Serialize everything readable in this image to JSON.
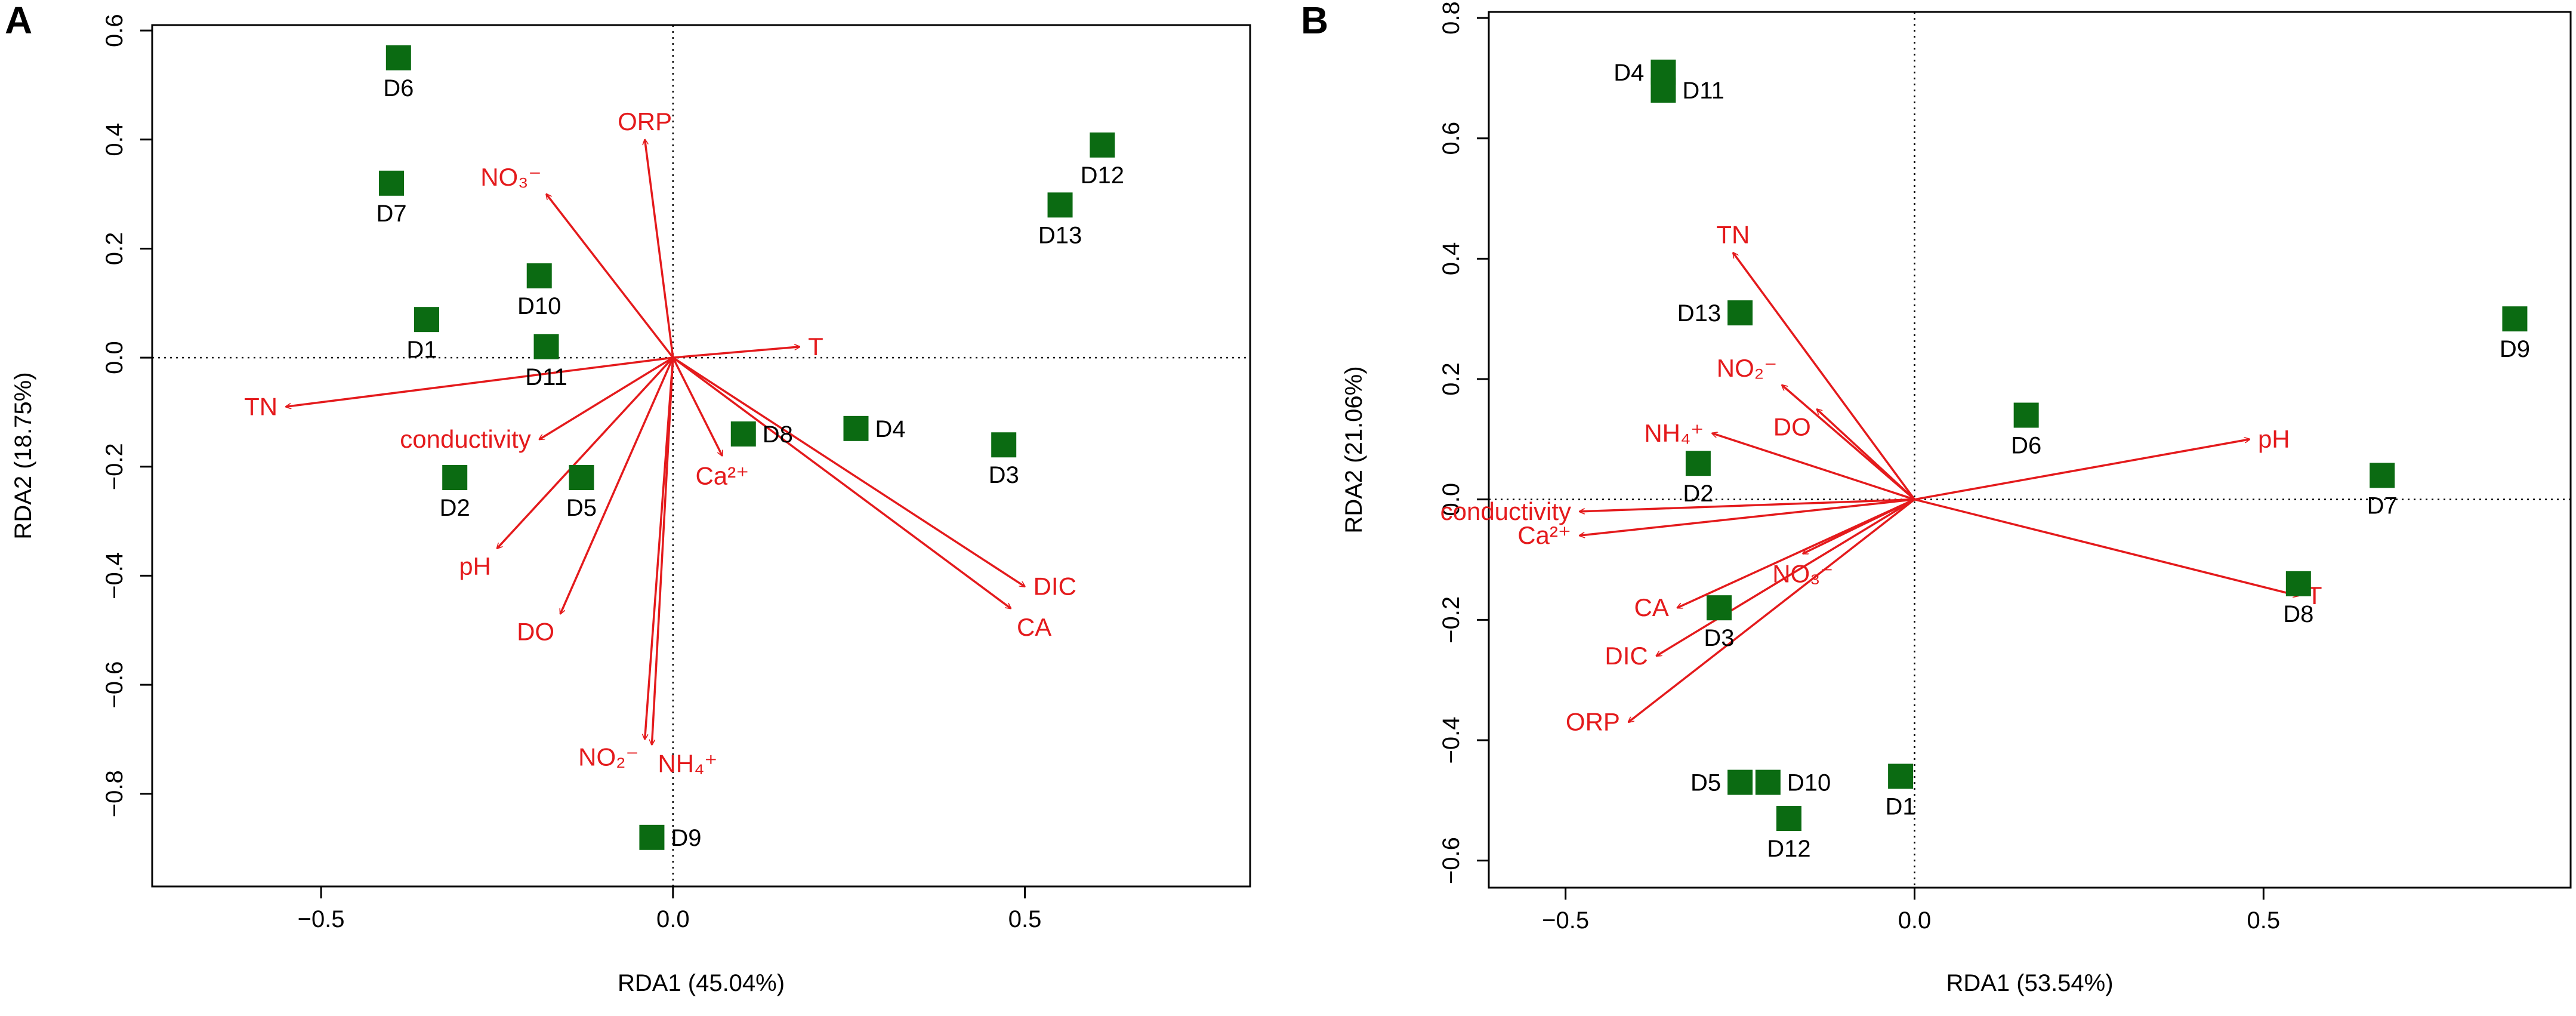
{
  "colors": {
    "arrow": "#e41a1c",
    "site": "#0b6b12",
    "axis": "#000000"
  },
  "chart_data": [
    {
      "type": "scatter",
      "panel": "A",
      "xlabel": "RDA1 (45.04%)",
      "ylabel": "RDA2 (18.75%)",
      "xlim": [
        -0.74,
        0.82
      ],
      "ylim": [
        -0.97,
        0.61
      ],
      "xticks": [
        -0.5,
        0.0,
        0.5
      ],
      "xtick_labels": [
        "−0.5",
        "0.0",
        "0.5"
      ],
      "yticks": [
        -0.8,
        -0.6,
        -0.4,
        -0.2,
        0.0,
        0.2,
        0.4,
        0.6
      ],
      "ytick_labels": [
        "−0.8",
        "−0.6",
        "−0.4",
        "−0.2",
        "0.0",
        "0.2",
        "0.4",
        "0.6"
      ],
      "arrows": [
        {
          "label": "ORP",
          "x": -0.04,
          "y": 0.4,
          "lpos": "top"
        },
        {
          "label": "NO₃⁻",
          "x": -0.18,
          "y": 0.3,
          "lpos": "top-left"
        },
        {
          "label": "T",
          "x": 0.18,
          "y": 0.02,
          "lpos": "right"
        },
        {
          "label": "TN",
          "x": -0.55,
          "y": -0.09,
          "lpos": "left"
        },
        {
          "label": "conductivity",
          "x": -0.19,
          "y": -0.15,
          "lpos": "left"
        },
        {
          "label": "pH",
          "x": -0.25,
          "y": -0.35,
          "lpos": "below-left"
        },
        {
          "label": "DO",
          "x": -0.16,
          "y": -0.47,
          "lpos": "below-left"
        },
        {
          "label": "Ca²⁺",
          "x": 0.07,
          "y": -0.18,
          "lpos": "below"
        },
        {
          "label": "DIC",
          "x": 0.5,
          "y": -0.42,
          "lpos": "right"
        },
        {
          "label": "CA",
          "x": 0.48,
          "y": -0.46,
          "lpos": "below-right"
        },
        {
          "label": "NO₂⁻",
          "x": -0.04,
          "y": -0.7,
          "lpos": "below-left"
        },
        {
          "label": "NH₄⁺",
          "x": -0.03,
          "y": -0.71,
          "lpos": "below-right"
        }
      ],
      "sites": [
        {
          "name": "D6",
          "x": -0.39,
          "y": 0.55,
          "lpos": "below"
        },
        {
          "name": "D7",
          "x": -0.4,
          "y": 0.32,
          "lpos": "below"
        },
        {
          "name": "D12",
          "x": 0.61,
          "y": 0.39,
          "lpos": "below"
        },
        {
          "name": "D13",
          "x": 0.55,
          "y": 0.28,
          "lpos": "below"
        },
        {
          "name": "D10",
          "x": -0.19,
          "y": 0.15,
          "lpos": "below"
        },
        {
          "name": "D1",
          "x": -0.35,
          "y": 0.07,
          "lpos": "below-left"
        },
        {
          "name": "D11",
          "x": -0.18,
          "y": 0.02,
          "lpos": "below"
        },
        {
          "name": "D8",
          "x": 0.1,
          "y": -0.14,
          "lpos": "right"
        },
        {
          "name": "D4",
          "x": 0.26,
          "y": -0.13,
          "lpos": "right"
        },
        {
          "name": "D3",
          "x": 0.47,
          "y": -0.16,
          "lpos": "below"
        },
        {
          "name": "D2",
          "x": -0.31,
          "y": -0.22,
          "lpos": "below"
        },
        {
          "name": "D5",
          "x": -0.13,
          "y": -0.22,
          "lpos": "below"
        },
        {
          "name": "D9",
          "x": -0.03,
          "y": -0.88,
          "lpos": "right"
        }
      ]
    },
    {
      "type": "scatter",
      "panel": "B",
      "xlabel": "RDA1 (53.54%)",
      "ylabel": "RDA2 (21.06%)",
      "xlim": [
        -0.61,
        0.94
      ],
      "ylim": [
        -0.645,
        0.81
      ],
      "xticks": [
        -0.5,
        0.0,
        0.5
      ],
      "xtick_labels": [
        "−0.5",
        "0.0",
        "0.5"
      ],
      "yticks": [
        -0.6,
        -0.4,
        -0.2,
        0.0,
        0.2,
        0.4,
        0.6,
        0.8
      ],
      "ytick_labels": [
        "−0.6",
        "−0.4",
        "−0.2",
        "0.0",
        "0.2",
        "0.4",
        "0.6",
        "0.8"
      ],
      "arrows": [
        {
          "label": "TN",
          "x": -0.26,
          "y": 0.41,
          "lpos": "top"
        },
        {
          "label": "NO₂⁻",
          "x": -0.19,
          "y": 0.19,
          "lpos": "top-left"
        },
        {
          "label": "DO",
          "x": -0.14,
          "y": 0.15,
          "lpos": "below-left"
        },
        {
          "label": "NH₄⁺",
          "x": -0.29,
          "y": 0.11,
          "lpos": "left"
        },
        {
          "label": "pH",
          "x": 0.48,
          "y": 0.1,
          "lpos": "right"
        },
        {
          "label": "conductivity",
          "x": -0.48,
          "y": -0.02,
          "lpos": "left"
        },
        {
          "label": "Ca²⁺",
          "x": -0.48,
          "y": -0.06,
          "lpos": "left"
        },
        {
          "label": "T",
          "x": 0.55,
          "y": -0.16,
          "lpos": "right"
        },
        {
          "label": "CA",
          "x": -0.34,
          "y": -0.18,
          "lpos": "left"
        },
        {
          "label": "NO₃⁻",
          "x": -0.16,
          "y": -0.09,
          "lpos": "below"
        },
        {
          "label": "DIC",
          "x": -0.37,
          "y": -0.26,
          "lpos": "left"
        },
        {
          "label": "ORP",
          "x": -0.41,
          "y": -0.37,
          "lpos": "left"
        }
      ],
      "sites": [
        {
          "name": "D4",
          "x": -0.36,
          "y": 0.71,
          "lpos": "left"
        },
        {
          "name": "D11",
          "x": -0.36,
          "y": 0.68,
          "lpos": "right"
        },
        {
          "name": "D13",
          "x": -0.25,
          "y": 0.31,
          "lpos": "left"
        },
        {
          "name": "D9",
          "x": 0.86,
          "y": 0.3,
          "lpos": "below"
        },
        {
          "name": "D6",
          "x": 0.16,
          "y": 0.14,
          "lpos": "below"
        },
        {
          "name": "D2",
          "x": -0.31,
          "y": 0.06,
          "lpos": "below"
        },
        {
          "name": "D7",
          "x": 0.67,
          "y": 0.04,
          "lpos": "below"
        },
        {
          "name": "D8",
          "x": 0.55,
          "y": -0.14,
          "lpos": "below"
        },
        {
          "name": "D3",
          "x": -0.28,
          "y": -0.18,
          "lpos": "below"
        },
        {
          "name": "D5",
          "x": -0.25,
          "y": -0.47,
          "lpos": "left"
        },
        {
          "name": "D10",
          "x": -0.21,
          "y": -0.47,
          "lpos": "right"
        },
        {
          "name": "D1",
          "x": -0.02,
          "y": -0.46,
          "lpos": "below"
        },
        {
          "name": "D12",
          "x": -0.18,
          "y": -0.53,
          "lpos": "below"
        }
      ]
    }
  ]
}
